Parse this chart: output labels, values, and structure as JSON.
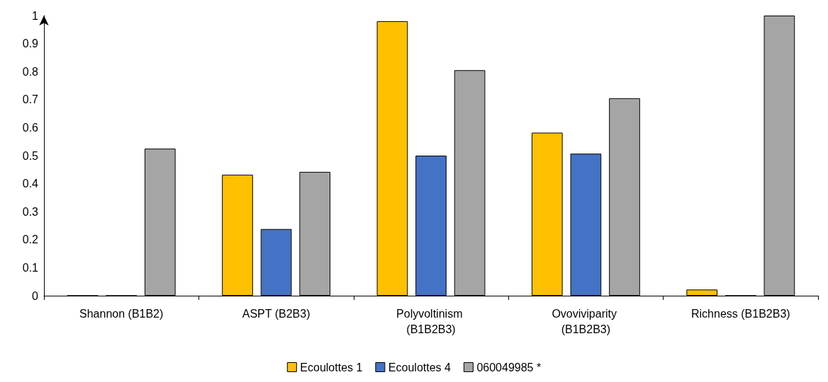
{
  "chart_data": {
    "type": "bar",
    "categories": [
      "Shannon (B1B2)",
      "ASPT (B2B3)",
      "Polyvoltinism (B1B2B3)",
      "Ovoviviparity (B1B2B3)",
      "Richness (B1B2B3)"
    ],
    "series": [
      {
        "name": "Ecoulottes 1",
        "color": "#ffc000",
        "values": [
          0,
          0.432,
          0.98,
          0.582,
          0.022
        ]
      },
      {
        "name": "Ecoulottes 4",
        "color": "#4472c4",
        "values": [
          0,
          0.238,
          0.5,
          0.507,
          0
        ]
      },
      {
        "name": "060049985 *",
        "color": "#a5a5a5",
        "values": [
          0.525,
          0.442,
          0.805,
          0.705,
          1.0
        ]
      }
    ],
    "ylim": [
      0,
      1
    ],
    "yticks": [
      0,
      0.1,
      0.2,
      0.3,
      0.4,
      0.5,
      0.6,
      0.7,
      0.8,
      0.9,
      1
    ],
    "grid": false,
    "legend": "bottom"
  }
}
